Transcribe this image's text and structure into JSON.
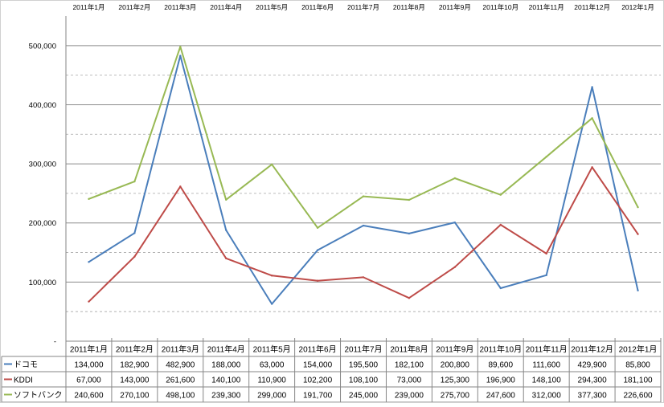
{
  "chart_data": {
    "type": "line",
    "title": "",
    "xlabel": "",
    "ylabel": "",
    "categories": [
      "2011年1月",
      "2011年2月",
      "2011年3月",
      "2011年4月",
      "2011年5月",
      "2011年6月",
      "2011年7月",
      "2011年8月",
      "2011年9月",
      "2011年10月",
      "2011年11月",
      "2011年12月",
      "2012年1月"
    ],
    "ylim": [
      0,
      550000
    ],
    "y_ticks": [
      0,
      100000,
      200000,
      300000,
      400000,
      500000
    ],
    "y_tick_labels": [
      "-",
      "100,000",
      "200,000",
      "300,000",
      "400,000",
      "500,000"
    ],
    "grid": true,
    "legend": "table-bottom",
    "series": [
      {
        "name": "ドコモ",
        "color": "#4a7ebb",
        "values": [
          134000,
          182900,
          482900,
          188000,
          63000,
          154000,
          195500,
          182100,
          200800,
          89600,
          111600,
          429900,
          85800
        ],
        "labels": [
          "134,000",
          "182,900",
          "482,900",
          "188,000",
          "63,000",
          "154,000",
          "195,500",
          "182,100",
          "200,800",
          "89,600",
          "111,600",
          "429,900",
          "85,800"
        ]
      },
      {
        "name": "KDDI",
        "color": "#be4b48",
        "values": [
          67000,
          143000,
          261600,
          140100,
          110900,
          102200,
          108100,
          73000,
          125300,
          196900,
          148100,
          294300,
          181100
        ],
        "labels": [
          "67,000",
          "143,000",
          "261,600",
          "140,100",
          "110,900",
          "102,200",
          "108,100",
          "73,000",
          "125,300",
          "196,900",
          "148,100",
          "294,300",
          "181,100"
        ]
      },
      {
        "name": "ソフトバンク",
        "color": "#98b954",
        "values": [
          240600,
          270100,
          498100,
          239300,
          299000,
          191700,
          245000,
          239000,
          275700,
          247600,
          312000,
          377300,
          226600
        ],
        "labels": [
          "240,600",
          "270,100",
          "498,100",
          "239,300",
          "299,000",
          "191,700",
          "245,000",
          "239,000",
          "275,700",
          "247,600",
          "312,000",
          "377,300",
          "226,600"
        ]
      }
    ]
  }
}
